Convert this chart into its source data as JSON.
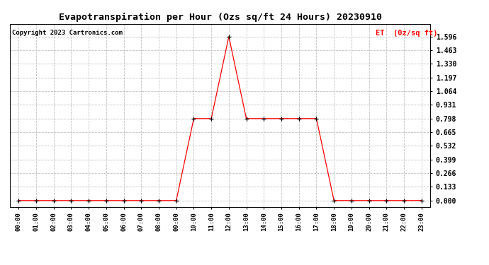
{
  "title": "Evapotranspiration per Hour (Ozs sq/ft 24 Hours) 20230910",
  "copyright": "Copyright 2023 Cartronics.com",
  "legend_label": "ET  (0z/sq ft)",
  "line_color": "red",
  "marker_color": "black",
  "background_color": "white",
  "grid_color": "#c0c0c0",
  "title_fontsize": 9.5,
  "copyright_fontsize": 6.5,
  "legend_fontsize": 7.5,
  "ytick_fontsize": 7,
  "xtick_fontsize": 6.5,
  "hours": [
    0,
    1,
    2,
    3,
    4,
    5,
    6,
    7,
    8,
    9,
    10,
    11,
    12,
    13,
    14,
    15,
    16,
    17,
    18,
    19,
    20,
    21,
    22,
    23
  ],
  "values": [
    0,
    0,
    0,
    0,
    0,
    0,
    0,
    0,
    0,
    0,
    0.798,
    0.798,
    1.596,
    0.798,
    0.798,
    0.798,
    0.798,
    0.798,
    0,
    0,
    0,
    0,
    0,
    0
  ],
  "yticks": [
    0.0,
    0.133,
    0.266,
    0.399,
    0.532,
    0.665,
    0.798,
    0.931,
    1.064,
    1.197,
    1.33,
    1.463,
    1.596
  ],
  "ylim": [
    -0.06,
    1.72
  ],
  "xlim": [
    -0.5,
    23.5
  ]
}
